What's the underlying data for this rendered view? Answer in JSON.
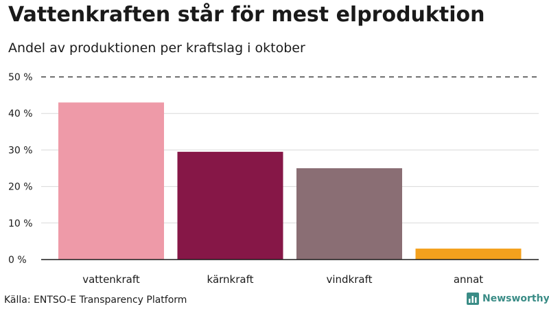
{
  "header": {
    "title": "Vattenkraften står för mest elproduktion",
    "subtitle": "Andel av produktionen per kraftslag i oktober"
  },
  "footer": {
    "source": "Källa: ENTSO-E Transparency Platform",
    "brand": "Newsworthy",
    "brand_icon": "bar-chart-logo-icon"
  },
  "colors": {
    "bars": [
      "#ee9aa8",
      "#861747",
      "#8a6e74",
      "#f4a11d"
    ],
    "brand": "#3a8c86",
    "axis": "#1a1a1a",
    "grid": "#d9d9d9"
  },
  "chart_data": {
    "type": "bar",
    "title": "Vattenkraften står för mest elproduktion",
    "subtitle": "Andel av produktionen per kraftslag i oktober",
    "categories": [
      "vattenkraft",
      "kärnkraft",
      "vindkraft",
      "annat"
    ],
    "values": [
      43,
      29.5,
      25,
      3
    ],
    "unit": "%",
    "ylim": [
      0,
      50
    ],
    "yticks": [
      0,
      10,
      20,
      30,
      40,
      50
    ],
    "ytick_labels": [
      "0 %",
      "10 %",
      "20 %",
      "30 %",
      "40 %",
      "50 %"
    ],
    "xlabel": "",
    "ylabel": "",
    "grid": true,
    "legend": "none"
  }
}
